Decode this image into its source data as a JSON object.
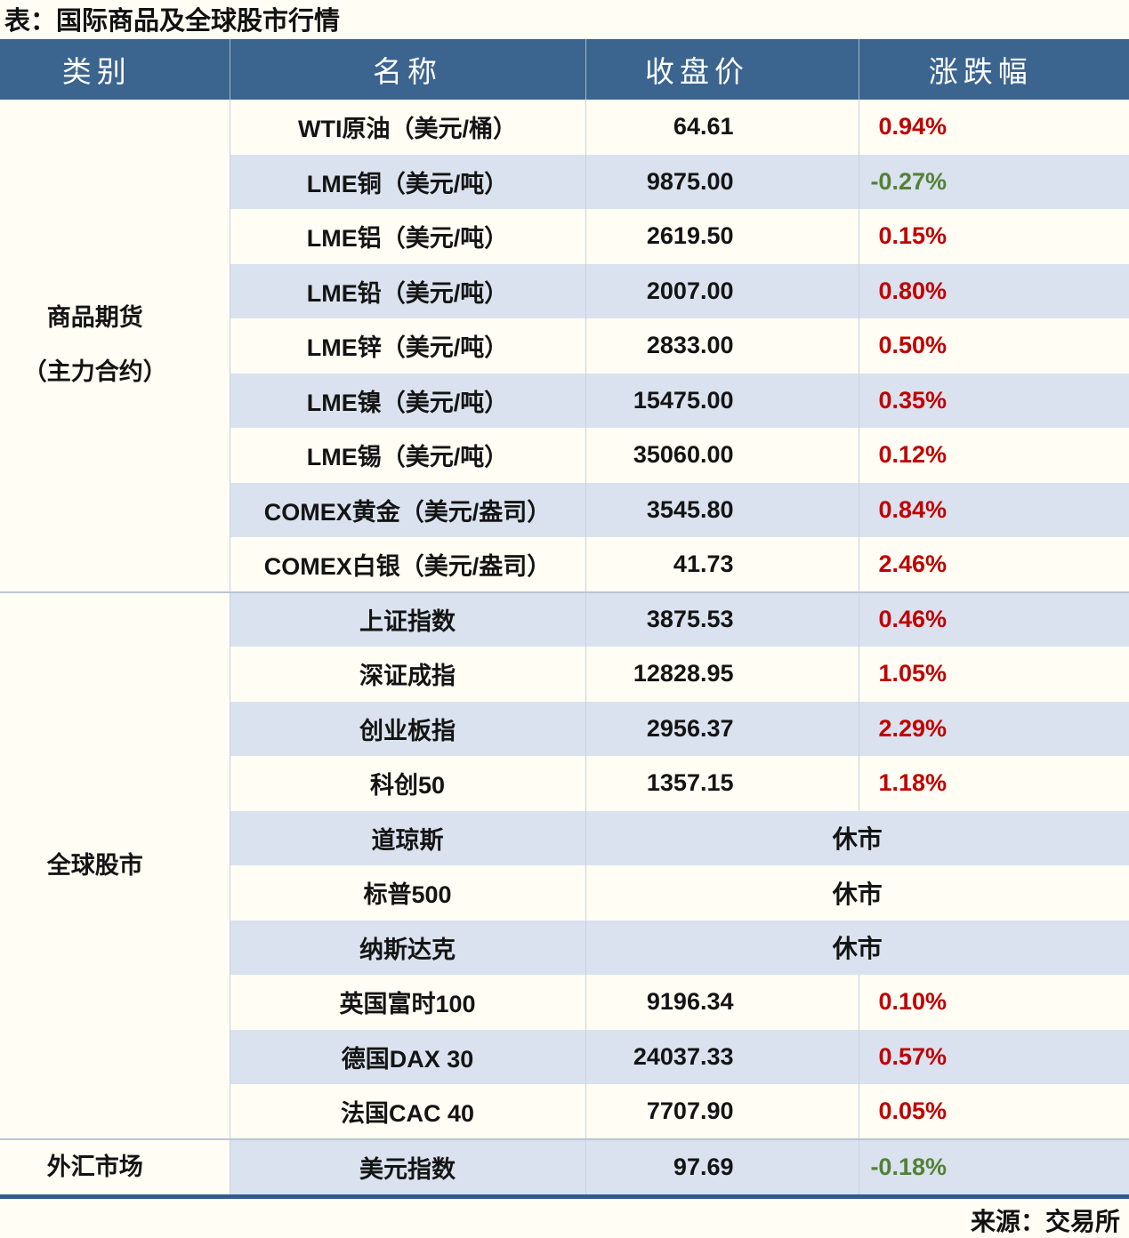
{
  "title": "表：国际商品及全球股市行情",
  "source": "来源：交易所",
  "colors": {
    "header_bg": "#3b648f",
    "stripe_blue": "#d9e2ee",
    "background_cream": "#fffdf4",
    "up_red": "#c00000",
    "down_green": "#538135",
    "group_divider": "#b9c6d6",
    "bottom_border": "#2f5b8e"
  },
  "table": {
    "headers": [
      "类别",
      "名称",
      "收盘价",
      "涨跌幅"
    ],
    "closed_label": "休市",
    "groups": [
      {
        "category_lines": [
          "商品期货",
          "（主力合约）"
        ],
        "rows": [
          {
            "name": "WTI原油（美元/桶）",
            "close": "64.61",
            "change": "0.94%",
            "dir": "up"
          },
          {
            "name": "LME铜（美元/吨）",
            "close": "9875.00",
            "change": "-0.27%",
            "dir": "down"
          },
          {
            "name": "LME铝（美元/吨）",
            "close": "2619.50",
            "change": "0.15%",
            "dir": "up"
          },
          {
            "name": "LME铅（美元/吨）",
            "close": "2007.00",
            "change": "0.80%",
            "dir": "up"
          },
          {
            "name": "LME锌（美元/吨）",
            "close": "2833.00",
            "change": "0.50%",
            "dir": "up"
          },
          {
            "name": "LME镍（美元/吨）",
            "close": "15475.00",
            "change": "0.35%",
            "dir": "up"
          },
          {
            "name": "LME锡（美元/吨）",
            "close": "35060.00",
            "change": "0.12%",
            "dir": "up"
          },
          {
            "name": "COMEX黄金（美元/盎司）",
            "close": "3545.80",
            "change": "0.84%",
            "dir": "up"
          },
          {
            "name": "COMEX白银（美元/盎司）",
            "close": "41.73",
            "change": "2.46%",
            "dir": "up"
          }
        ]
      },
      {
        "category_lines": [
          "全球股市"
        ],
        "rows": [
          {
            "name": "上证指数",
            "close": "3875.53",
            "change": "0.46%",
            "dir": "up"
          },
          {
            "name": "深证成指",
            "close": "12828.95",
            "change": "1.05%",
            "dir": "up"
          },
          {
            "name": "创业板指",
            "close": "2956.37",
            "change": "2.29%",
            "dir": "up"
          },
          {
            "name": "科创50",
            "close": "1357.15",
            "change": "1.18%",
            "dir": "up"
          },
          {
            "name": "道琼斯",
            "status": "休市"
          },
          {
            "name": "标普500",
            "status": "休市"
          },
          {
            "name": "纳斯达克",
            "status": "休市"
          },
          {
            "name": "英国富时100",
            "close": "9196.34",
            "change": "0.10%",
            "dir": "up"
          },
          {
            "name": "德国DAX 30",
            "close": "24037.33",
            "change": "0.57%",
            "dir": "up"
          },
          {
            "name": "法国CAC 40",
            "close": "7707.90",
            "change": "0.05%",
            "dir": "up"
          }
        ]
      },
      {
        "category_lines": [
          "外汇市场"
        ],
        "rows": [
          {
            "name": "美元指数",
            "close": "97.69",
            "change": "-0.18%",
            "dir": "down"
          }
        ]
      }
    ]
  }
}
